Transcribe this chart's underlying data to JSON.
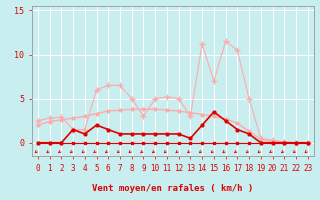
{
  "xlabel": "Vent moyen/en rafales ( km/h )",
  "background_color": "#c8eef0",
  "grid_color": "#ffffff",
  "xlim": [
    -0.5,
    23.5
  ],
  "ylim": [
    -1.5,
    15.5
  ],
  "yticks": [
    0,
    5,
    10,
    15
  ],
  "xticks": [
    0,
    1,
    2,
    3,
    4,
    5,
    6,
    7,
    8,
    9,
    10,
    11,
    12,
    13,
    14,
    15,
    16,
    17,
    18,
    19,
    20,
    21,
    22,
    23
  ],
  "line_smooth": {
    "x": [
      0,
      1,
      2,
      3,
      4,
      5,
      6,
      7,
      8,
      9,
      10,
      11,
      12,
      13,
      14,
      15,
      16,
      17,
      18,
      19,
      20,
      21,
      22,
      23
    ],
    "y": [
      2.0,
      2.4,
      2.6,
      2.8,
      3.0,
      3.3,
      3.6,
      3.7,
      3.8,
      3.8,
      3.8,
      3.7,
      3.6,
      3.4,
      3.2,
      3.0,
      2.7,
      2.2,
      1.3,
      0.4,
      0.15,
      0.05,
      0.0,
      0.0
    ],
    "color": "#ffaaaa",
    "linewidth": 1.0,
    "marker": "o",
    "markersize": 2.0
  },
  "line_rafales": {
    "x": [
      0,
      1,
      2,
      3,
      4,
      5,
      6,
      7,
      8,
      9,
      10,
      11,
      12,
      13,
      14,
      15,
      16,
      17,
      18,
      19,
      20,
      21,
      22,
      23
    ],
    "y": [
      2.5,
      2.8,
      2.9,
      1.5,
      1.5,
      6.0,
      6.5,
      6.5,
      5.0,
      3.0,
      5.0,
      5.2,
      5.0,
      3.0,
      11.2,
      7.0,
      11.5,
      10.5,
      5.0,
      0.5,
      0.3,
      0.1,
      0.0,
      0.0
    ],
    "color": "#ffaaaa",
    "linewidth": 0.8,
    "marker": "+",
    "markersize": 5
  },
  "line_moyen": {
    "x": [
      0,
      1,
      2,
      3,
      4,
      5,
      6,
      7,
      8,
      9,
      10,
      11,
      12,
      13,
      14,
      15,
      16,
      17,
      18,
      19,
      20,
      21,
      22,
      23
    ],
    "y": [
      0,
      0,
      0,
      1.5,
      1.0,
      2.0,
      1.5,
      1.0,
      1.0,
      1.0,
      1.0,
      1.0,
      1.0,
      0.5,
      2.0,
      3.5,
      2.5,
      1.5,
      1.0,
      0.0,
      0.0,
      0.0,
      0.0,
      0.0
    ],
    "color": "#dd0000",
    "linewidth": 1.2,
    "marker": "o",
    "markersize": 2.0
  },
  "line_zero": {
    "x": [
      0,
      1,
      2,
      3,
      4,
      5,
      6,
      7,
      8,
      9,
      10,
      11,
      12,
      13,
      14,
      15,
      16,
      17,
      18,
      19,
      20,
      21,
      22,
      23
    ],
    "y": [
      0,
      0,
      0,
      0,
      0,
      0,
      0,
      0,
      0,
      0,
      0,
      0,
      0,
      0,
      0,
      0,
      0,
      0,
      0,
      0,
      0,
      0,
      0,
      0
    ],
    "color": "#dd0000",
    "linewidth": 0.8,
    "marker": "s",
    "markersize": 1.8
  },
  "tick_color": "#dd0000",
  "label_fontsize": 5.5,
  "xlabel_fontsize": 6.5
}
